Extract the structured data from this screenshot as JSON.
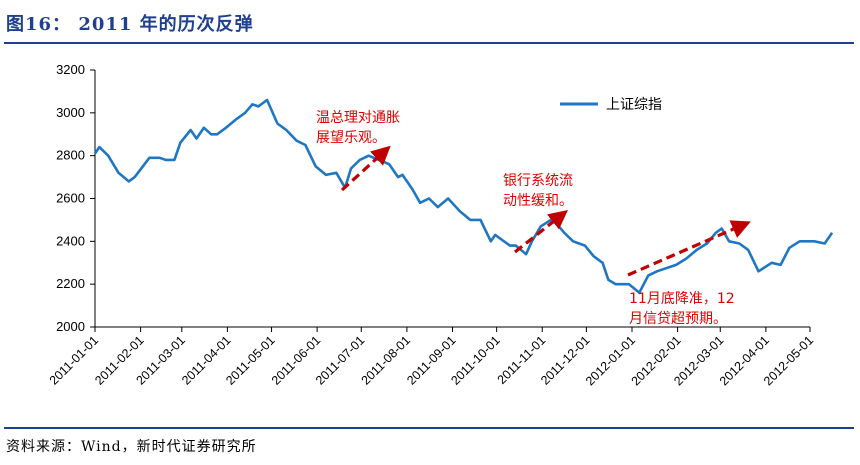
{
  "figure_title": "图16： 2011 年的历次反弹",
  "source_note": "资料来源：Wind，新时代证券研究所",
  "colors": {
    "series": "#1f77c4",
    "annotation": "#e00000",
    "arrow": "#c00000",
    "title": "#1f3f8f"
  },
  "annotations": [
    {
      "lines": [
        "温总理对通胀",
        "展望乐观。"
      ]
    },
    {
      "lines": [
        "银行系统流",
        "动性缓和。"
      ]
    },
    {
      "lines": [
        "11月底降准，12",
        "月信贷超预期。"
      ]
    }
  ],
  "chart_data": {
    "type": "line",
    "title": "",
    "xlabel": "",
    "ylabel": "",
    "ylim": [
      2000,
      3200
    ],
    "yticks": [
      2000,
      2200,
      2400,
      2600,
      2800,
      3000,
      3200
    ],
    "x_tick_labels": [
      "2011-01-01",
      "2011-02-01",
      "2011-03-01",
      "2011-04-01",
      "2011-05-01",
      "2011-06-01",
      "2011-07-01",
      "2011-08-01",
      "2011-09-01",
      "2011-10-01",
      "2011-11-01",
      "2011-12-01",
      "2012-01-01",
      "2012-02-01",
      "2012-03-01",
      "2012-04-01",
      "2012-05-01"
    ],
    "legend_position": "top-right",
    "grid": false,
    "series": [
      {
        "name": "上证综指",
        "points": [
          [
            "2011-01-01",
            2810
          ],
          [
            "2011-01-04",
            2840
          ],
          [
            "2011-01-10",
            2800
          ],
          [
            "2011-01-17",
            2720
          ],
          [
            "2011-01-24",
            2680
          ],
          [
            "2011-01-28",
            2700
          ],
          [
            "2011-02-07",
            2790
          ],
          [
            "2011-02-14",
            2790
          ],
          [
            "2011-02-18",
            2780
          ],
          [
            "2011-02-24",
            2780
          ],
          [
            "2011-02-28",
            2860
          ],
          [
            "2011-03-07",
            2920
          ],
          [
            "2011-03-11",
            2880
          ],
          [
            "2011-03-16",
            2930
          ],
          [
            "2011-03-21",
            2900
          ],
          [
            "2011-03-25",
            2900
          ],
          [
            "2011-03-31",
            2930
          ],
          [
            "2011-04-07",
            2970
          ],
          [
            "2011-04-13",
            3000
          ],
          [
            "2011-04-18",
            3040
          ],
          [
            "2011-04-22",
            3030
          ],
          [
            "2011-04-28",
            3060
          ],
          [
            "2011-05-05",
            2950
          ],
          [
            "2011-05-11",
            2920
          ],
          [
            "2011-05-18",
            2870
          ],
          [
            "2011-05-24",
            2850
          ],
          [
            "2011-05-31",
            2750
          ],
          [
            "2011-06-07",
            2710
          ],
          [
            "2011-06-14",
            2720
          ],
          [
            "2011-06-20",
            2650
          ],
          [
            "2011-06-24",
            2740
          ],
          [
            "2011-06-30",
            2780
          ],
          [
            "2011-07-06",
            2800
          ],
          [
            "2011-07-13",
            2780
          ],
          [
            "2011-07-20",
            2760
          ],
          [
            "2011-07-26",
            2700
          ],
          [
            "2011-07-29",
            2710
          ],
          [
            "2011-08-05",
            2640
          ],
          [
            "2011-08-10",
            2580
          ],
          [
            "2011-08-16",
            2600
          ],
          [
            "2011-08-22",
            2560
          ],
          [
            "2011-08-29",
            2600
          ],
          [
            "2011-09-06",
            2540
          ],
          [
            "2011-09-13",
            2500
          ],
          [
            "2011-09-20",
            2500
          ],
          [
            "2011-09-27",
            2400
          ],
          [
            "2011-09-30",
            2430
          ],
          [
            "2011-10-10",
            2380
          ],
          [
            "2011-10-14",
            2380
          ],
          [
            "2011-10-21",
            2340
          ],
          [
            "2011-10-25",
            2400
          ],
          [
            "2011-10-31",
            2470
          ],
          [
            "2011-11-07",
            2500
          ],
          [
            "2011-11-11",
            2480
          ],
          [
            "2011-11-16",
            2440
          ],
          [
            "2011-11-22",
            2400
          ],
          [
            "2011-11-30",
            2380
          ],
          [
            "2011-12-06",
            2330
          ],
          [
            "2011-12-12",
            2300
          ],
          [
            "2011-12-16",
            2220
          ],
          [
            "2011-12-21",
            2200
          ],
          [
            "2011-12-30",
            2200
          ],
          [
            "2012-01-06",
            2160
          ],
          [
            "2012-01-12",
            2240
          ],
          [
            "2012-01-18",
            2260
          ],
          [
            "2012-01-31",
            2290
          ],
          [
            "2012-02-07",
            2320
          ],
          [
            "2012-02-14",
            2360
          ],
          [
            "2012-02-21",
            2390
          ],
          [
            "2012-02-27",
            2440
          ],
          [
            "2012-03-02",
            2460
          ],
          [
            "2012-03-07",
            2400
          ],
          [
            "2012-03-14",
            2390
          ],
          [
            "2012-03-20",
            2360
          ],
          [
            "2012-03-27",
            2260
          ],
          [
            "2012-04-05",
            2300
          ],
          [
            "2012-04-11",
            2290
          ],
          [
            "2012-04-17",
            2370
          ],
          [
            "2012-04-24",
            2400
          ],
          [
            "2012-05-04",
            2400
          ],
          [
            "2012-05-11",
            2390
          ],
          [
            "2012-05-16",
            2440
          ]
        ]
      }
    ]
  }
}
